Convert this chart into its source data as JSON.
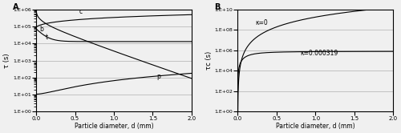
{
  "xlim": [
    0,
    2
  ],
  "xlabel": "Particle diameter, d (mm)",
  "panel_A_ylabel": "τ (s)",
  "panel_B_ylabel": "τc (s)",
  "panel_A_label": "A",
  "panel_B_label": "B",
  "curve_labels_A": [
    "b",
    "c",
    "t",
    "p"
  ],
  "curve_labels_B": [
    "κ=0",
    "κ=0.000319"
  ],
  "background_color": "#f0f0f0",
  "line_color": "#000000",
  "yticks_A": [
    1.0,
    10.0,
    100.0,
    1000.0,
    10000.0,
    100000.0,
    1000000.0
  ],
  "ytick_labels_A": [
    "1.E+00",
    "1.E+01",
    "1.E+02",
    "1.E+03",
    "1.E+04",
    "1.E+05",
    "1.E+06"
  ],
  "yticks_B": [
    1.0,
    100.0,
    10000.0,
    1000000.0,
    100000000.0,
    10000000000.0
  ],
  "ytick_labels_B": [
    "1.E+00",
    "1.E+02",
    "1.E+04",
    "1.E+06",
    "1.E+08",
    "1.E+10"
  ]
}
